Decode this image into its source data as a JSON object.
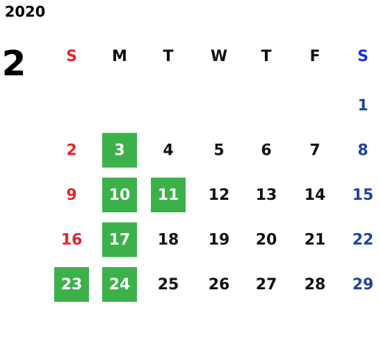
{
  "calendar": {
    "year": "2020",
    "month": "2",
    "weekdays": [
      "S",
      "M",
      "T",
      "W",
      "T",
      "F",
      "S"
    ],
    "weeks": [
      [
        null,
        null,
        null,
        null,
        null,
        null,
        1
      ],
      [
        2,
        3,
        4,
        5,
        6,
        7,
        8
      ],
      [
        9,
        10,
        11,
        12,
        13,
        14,
        15
      ],
      [
        16,
        17,
        18,
        19,
        20,
        21,
        22
      ],
      [
        23,
        24,
        25,
        26,
        27,
        28,
        29
      ]
    ],
    "highlighted": [
      3,
      10,
      11,
      17,
      23,
      24
    ],
    "highlight_color": "#3cb14a",
    "sunday_color": "#e0262c",
    "saturday_header_color": "#1232d8",
    "saturday_color": "#1f4598",
    "weekday_color": "#111111"
  }
}
